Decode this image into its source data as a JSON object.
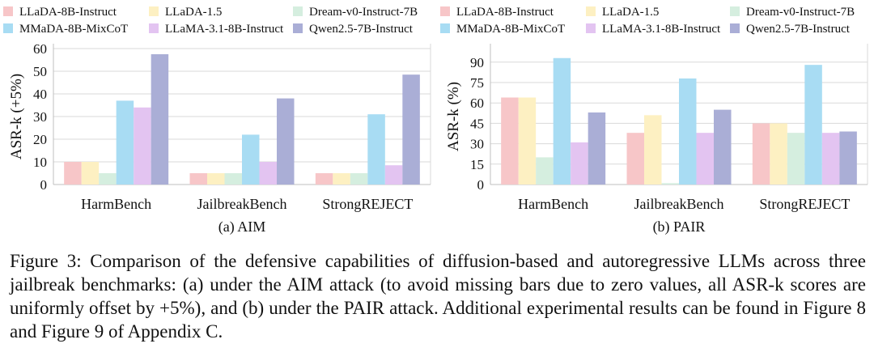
{
  "chart_data": [
    {
      "type": "bar",
      "subtitle": "(a) AIM",
      "ylabel": "ASR-k (+5%)",
      "xlabel": "",
      "ylim": [
        0,
        60
      ],
      "yticks": [
        0,
        10,
        20,
        30,
        40,
        50,
        60
      ],
      "grid": true,
      "legend_position": "top",
      "categories": [
        "HarmBench",
        "JailbreakBench",
        "StrongREJECT"
      ],
      "series": [
        {
          "name": "LLaDA-8B-Instruct",
          "color": "#f7c6c8",
          "values": [
            10,
            5,
            5
          ]
        },
        {
          "name": "LLaDA-1.5",
          "color": "#fdf0c2",
          "values": [
            10,
            5,
            5
          ]
        },
        {
          "name": "Dream-v0-Instruct-7B",
          "color": "#d5eedf",
          "values": [
            5,
            5,
            5
          ]
        },
        {
          "name": "MMaDA-8B-MixCoT",
          "color": "#a8dcf3",
          "values": [
            37,
            22,
            31
          ]
        },
        {
          "name": "LLaMA-3.1-8B-Instruct",
          "color": "#e3c4f1",
          "values": [
            34,
            10,
            8.5
          ]
        },
        {
          "name": "Qwen2.5-7B-Instruct",
          "color": "#aaaed6",
          "values": [
            57.5,
            38,
            48.5
          ]
        }
      ]
    },
    {
      "type": "bar",
      "subtitle": "(b) PAIR",
      "ylabel": "ASR-k (%)",
      "xlabel": "",
      "ylim": [
        0,
        100
      ],
      "yticks": [
        0,
        15,
        30,
        45,
        60,
        75,
        90
      ],
      "grid": true,
      "legend_position": "top",
      "categories": [
        "HarmBench",
        "JailbreakBench",
        "StrongREJECT"
      ],
      "series": [
        {
          "name": "LLaDA-8B-Instruct",
          "color": "#f7c6c8",
          "values": [
            64,
            38,
            45
          ]
        },
        {
          "name": "LLaDA-1.5",
          "color": "#fdf0c2",
          "values": [
            64,
            51,
            45
          ]
        },
        {
          "name": "Dream-v0-Instruct-7B",
          "color": "#d5eedf",
          "values": [
            20,
            1,
            38
          ]
        },
        {
          "name": "MMaDA-8B-MixCoT",
          "color": "#a8dcf3",
          "values": [
            93,
            78,
            88
          ]
        },
        {
          "name": "LLaMA-3.1-8B-Instruct",
          "color": "#e3c4f1",
          "values": [
            31,
            38,
            38
          ]
        },
        {
          "name": "Qwen2.5-7B-Instruct",
          "color": "#aaaed6",
          "values": [
            53,
            55,
            39
          ]
        }
      ]
    }
  ],
  "caption": {
    "label": "Figure 3:",
    "text": "Comparison of the defensive capabilities of diffusion-based and autoregressive LLMs across three jailbreak benchmarks: (a) under the AIM attack (to avoid missing bars due to zero values, all ASR-k scores are uniformly offset by +5%), and (b) under the PAIR attack. Additional experimental results can be found in Figure 8 and Figure 9 of Appendix C."
  }
}
